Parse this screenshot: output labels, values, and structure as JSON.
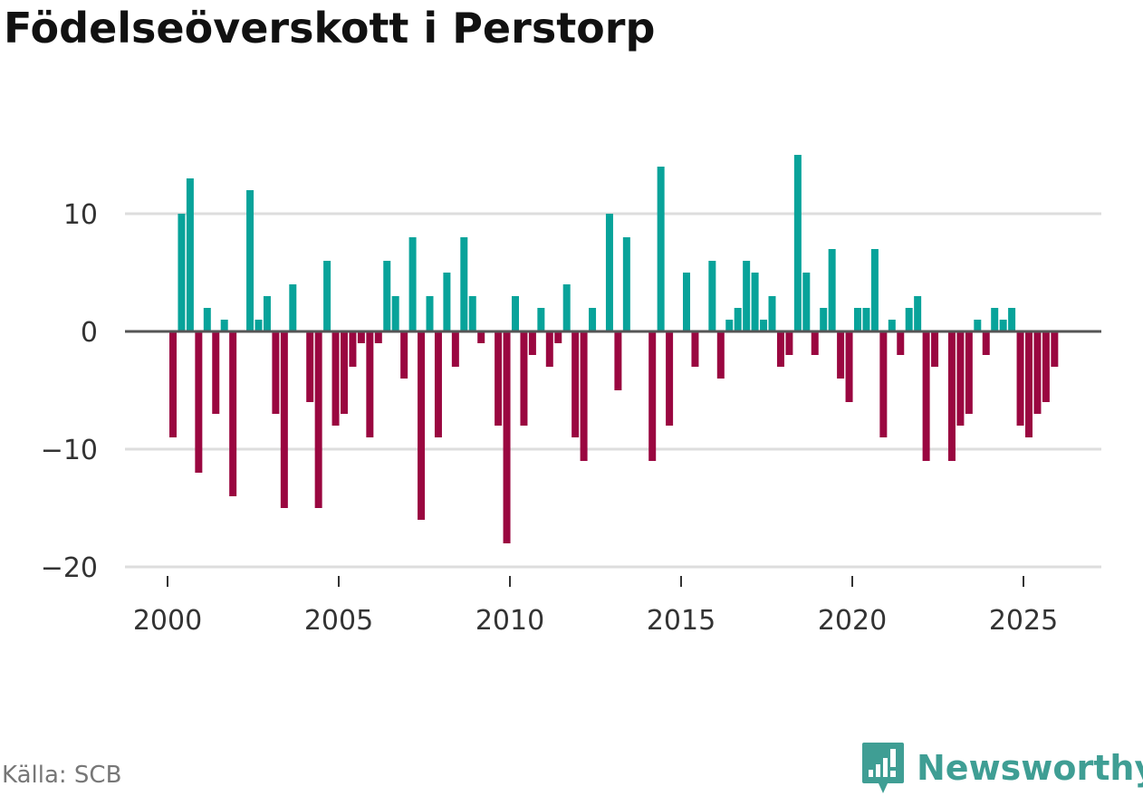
{
  "title": "Födelseöverskott i Perstorp",
  "source": "Källa: SCB",
  "brand": "Newsworthy",
  "colors": {
    "positive": "#08a39a",
    "negative": "#9a0740",
    "grid": "#dddddd",
    "zero": "#555555",
    "brand": "#3f9e94"
  },
  "chart_data": {
    "type": "bar",
    "x_unit": "quarter",
    "ylim": [
      -21,
      16
    ],
    "y_ticks": [
      {
        "value": 10,
        "label": "10"
      },
      {
        "value": 0,
        "label": "0"
      },
      {
        "value": -10,
        "label": "−10"
      },
      {
        "value": -20,
        "label": "−20"
      }
    ],
    "x_ticks": [
      {
        "value": 2000,
        "label": "2000"
      },
      {
        "value": 2005,
        "label": "2005"
      },
      {
        "value": 2010,
        "label": "2010"
      },
      {
        "value": 2015,
        "label": "2015"
      },
      {
        "value": 2020,
        "label": "2020"
      },
      {
        "value": 2025,
        "label": "2025"
      }
    ],
    "grid": true,
    "bars": [
      {
        "period": "2000 Q1",
        "value": -9
      },
      {
        "period": "2000 Q2",
        "value": 10
      },
      {
        "period": "2000 Q3",
        "value": 13
      },
      {
        "period": "2000 Q4",
        "value": -12
      },
      {
        "period": "2001 Q1",
        "value": 2
      },
      {
        "period": "2001 Q2",
        "value": -7
      },
      {
        "period": "2001 Q3",
        "value": 1
      },
      {
        "period": "2001 Q4",
        "value": -14
      },
      {
        "period": "2002 Q1",
        "value": 0
      },
      {
        "period": "2002 Q2",
        "value": 12
      },
      {
        "period": "2002 Q3",
        "value": 1
      },
      {
        "period": "2002 Q4",
        "value": 3
      },
      {
        "period": "2003 Q1",
        "value": -7
      },
      {
        "period": "2003 Q2",
        "value": -15
      },
      {
        "period": "2003 Q3",
        "value": 4
      },
      {
        "period": "2003 Q4",
        "value": 0
      },
      {
        "period": "2004 Q1",
        "value": -6
      },
      {
        "period": "2004 Q2",
        "value": -15
      },
      {
        "period": "2004 Q3",
        "value": 6
      },
      {
        "period": "2004 Q4",
        "value": -8
      },
      {
        "period": "2005 Q1",
        "value": -7
      },
      {
        "period": "2005 Q2",
        "value": -3
      },
      {
        "period": "2005 Q3",
        "value": -1
      },
      {
        "period": "2005 Q4",
        "value": -9
      },
      {
        "period": "2006 Q1",
        "value": -1
      },
      {
        "period": "2006 Q2",
        "value": 6
      },
      {
        "period": "2006 Q3",
        "value": 3
      },
      {
        "period": "2006 Q4",
        "value": -4
      },
      {
        "period": "2007 Q1",
        "value": 8
      },
      {
        "period": "2007 Q2",
        "value": -16
      },
      {
        "period": "2007 Q3",
        "value": 3
      },
      {
        "period": "2007 Q4",
        "value": -9
      },
      {
        "period": "2008 Q1",
        "value": 5
      },
      {
        "period": "2008 Q2",
        "value": -3
      },
      {
        "period": "2008 Q3",
        "value": 8
      },
      {
        "period": "2008 Q4",
        "value": 3
      },
      {
        "period": "2009 Q1",
        "value": -1
      },
      {
        "period": "2009 Q2",
        "value": 0
      },
      {
        "period": "2009 Q3",
        "value": -8
      },
      {
        "period": "2009 Q4",
        "value": -18
      },
      {
        "period": "2010 Q1",
        "value": 3
      },
      {
        "period": "2010 Q2",
        "value": -8
      },
      {
        "period": "2010 Q3",
        "value": -2
      },
      {
        "period": "2010 Q4",
        "value": 2
      },
      {
        "period": "2011 Q1",
        "value": -3
      },
      {
        "period": "2011 Q2",
        "value": -1
      },
      {
        "period": "2011 Q3",
        "value": 4
      },
      {
        "period": "2011 Q4",
        "value": -9
      },
      {
        "period": "2012 Q1",
        "value": -11
      },
      {
        "period": "2012 Q2",
        "value": 2
      },
      {
        "period": "2012 Q3",
        "value": 0
      },
      {
        "period": "2012 Q4",
        "value": 10
      },
      {
        "period": "2013 Q1",
        "value": -5
      },
      {
        "period": "2013 Q2",
        "value": 8
      },
      {
        "period": "2013 Q3",
        "value": 0
      },
      {
        "period": "2013 Q4",
        "value": 0
      },
      {
        "period": "2014 Q1",
        "value": -11
      },
      {
        "period": "2014 Q2",
        "value": 14
      },
      {
        "period": "2014 Q3",
        "value": -8
      },
      {
        "period": "2014 Q4",
        "value": 0
      },
      {
        "period": "2015 Q1",
        "value": 5
      },
      {
        "period": "2015 Q2",
        "value": -3
      },
      {
        "period": "2015 Q3",
        "value": 0
      },
      {
        "period": "2015 Q4",
        "value": 6
      },
      {
        "period": "2016 Q1",
        "value": -4
      },
      {
        "period": "2016 Q2",
        "value": 1
      },
      {
        "period": "2016 Q3",
        "value": 2
      },
      {
        "period": "2016 Q4",
        "value": 6
      },
      {
        "period": "2017 Q1",
        "value": 5
      },
      {
        "period": "2017 Q2",
        "value": 1
      },
      {
        "period": "2017 Q3",
        "value": 3
      },
      {
        "period": "2017 Q4",
        "value": -3
      },
      {
        "period": "2018 Q1",
        "value": -2
      },
      {
        "period": "2018 Q2",
        "value": 15
      },
      {
        "period": "2018 Q3",
        "value": 5
      },
      {
        "period": "2018 Q4",
        "value": -2
      },
      {
        "period": "2019 Q1",
        "value": 2
      },
      {
        "period": "2019 Q2",
        "value": 7
      },
      {
        "period": "2019 Q3",
        "value": -4
      },
      {
        "period": "2019 Q4",
        "value": -6
      },
      {
        "period": "2020 Q1",
        "value": 2
      },
      {
        "period": "2020 Q2",
        "value": 2
      },
      {
        "period": "2020 Q3",
        "value": 7
      },
      {
        "period": "2020 Q4",
        "value": -9
      },
      {
        "period": "2021 Q1",
        "value": 1
      },
      {
        "period": "2021 Q2",
        "value": -2
      },
      {
        "period": "2021 Q3",
        "value": 2
      },
      {
        "period": "2021 Q4",
        "value": 3
      },
      {
        "period": "2022 Q1",
        "value": -11
      },
      {
        "period": "2022 Q2",
        "value": -3
      },
      {
        "period": "2022 Q3",
        "value": 0
      },
      {
        "period": "2022 Q4",
        "value": -11
      },
      {
        "period": "2023 Q1",
        "value": -8
      },
      {
        "period": "2023 Q2",
        "value": -7
      },
      {
        "period": "2023 Q3",
        "value": 1
      },
      {
        "period": "2023 Q4",
        "value": -2
      },
      {
        "period": "2024 Q1",
        "value": 2
      },
      {
        "period": "2024 Q2",
        "value": 1
      },
      {
        "period": "2024 Q3",
        "value": 2
      },
      {
        "period": "2024 Q4",
        "value": -8
      },
      {
        "period": "2025 Q1",
        "value": -9
      },
      {
        "period": "2025 Q2",
        "value": -7
      },
      {
        "period": "2025 Q3",
        "value": -6
      },
      {
        "period": "2025 Q4",
        "value": -3
      }
    ]
  }
}
